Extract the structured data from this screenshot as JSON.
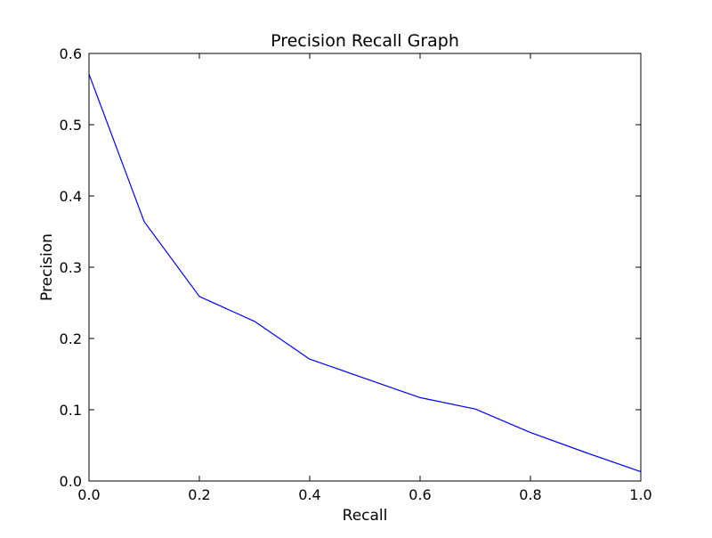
{
  "chart_data": {
    "type": "line",
    "title": "Precision Recall Graph",
    "xlabel": "Recall",
    "ylabel": "Precision",
    "xlim": [
      0.0,
      1.0
    ],
    "ylim": [
      0.0,
      0.6
    ],
    "xticks": [
      "0.0",
      "0.2",
      "0.4",
      "0.6",
      "0.8",
      "1.0"
    ],
    "yticks": [
      "0.0",
      "0.1",
      "0.2",
      "0.3",
      "0.4",
      "0.5",
      "0.6"
    ],
    "grid": false,
    "legend": "none",
    "series": [
      {
        "color": "#0000ff",
        "x": [
          0.0,
          0.1,
          0.2,
          0.3,
          0.4,
          0.5,
          0.6,
          0.7,
          0.8,
          0.9,
          1.0
        ],
        "y": [
          0.571,
          0.364,
          0.259,
          0.224,
          0.171,
          0.144,
          0.117,
          0.101,
          0.068,
          0.04,
          0.013
        ]
      }
    ]
  }
}
